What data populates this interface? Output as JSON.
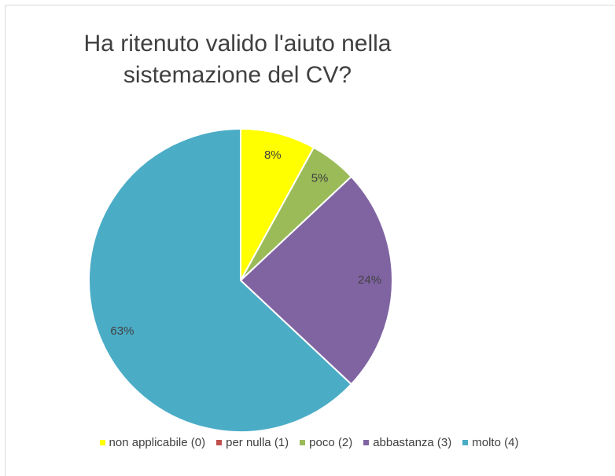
{
  "chart_data": {
    "type": "pie",
    "title": "Ha ritenuto valido l'aiuto nella sistemazione del CV?",
    "categories": [
      "non applicabile (0)",
      "per nulla (1)",
      "poco (2)",
      "abbastanza (3)",
      "molto (4)"
    ],
    "values": [
      8,
      0,
      5,
      24,
      63
    ],
    "value_labels": [
      "8%",
      null,
      "5%",
      "24%",
      "63%"
    ],
    "colors": [
      "#ffff00",
      "#c0504d",
      "#9bbb59",
      "#8064a2",
      "#4bacc6"
    ],
    "legend": "bottom"
  }
}
